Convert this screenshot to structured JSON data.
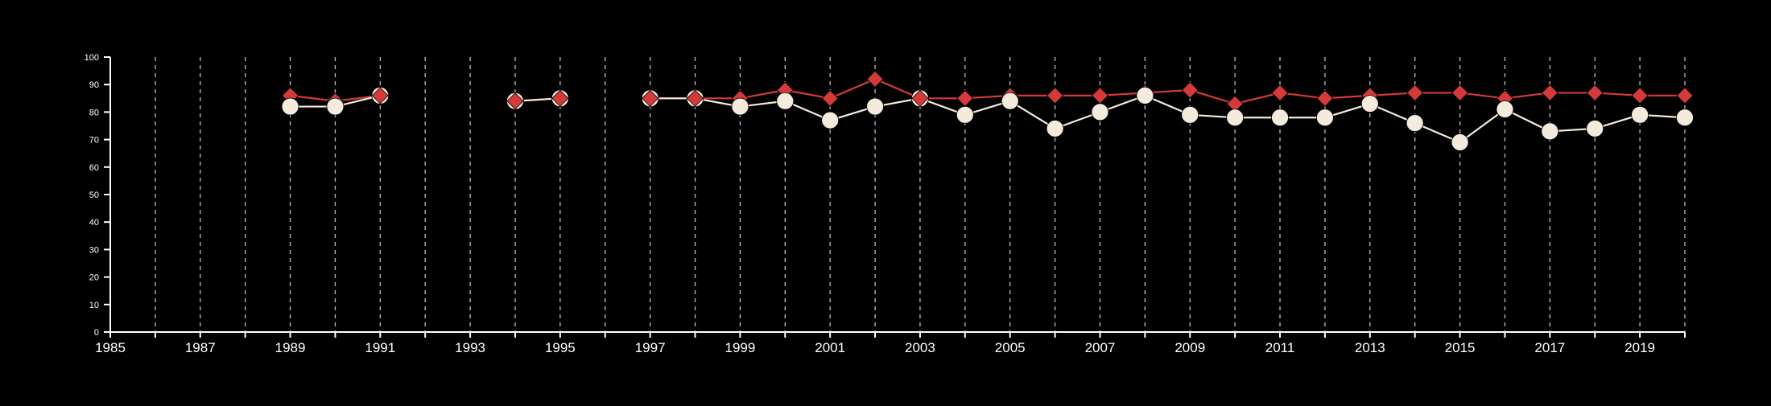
{
  "chart_data": {
    "type": "line",
    "x_range": [
      1985,
      2020
    ],
    "x_tick_labels": [
      "1985",
      "1987",
      "1989",
      "1991",
      "1993",
      "1995",
      "1997",
      "1999",
      "2001",
      "2003",
      "2005",
      "2007",
      "2009",
      "2011",
      "2013",
      "2015",
      "2017",
      "2019"
    ],
    "ylim": [
      0,
      100
    ],
    "y_tick_labels": [
      "0",
      "10",
      "20",
      "30",
      "40",
      "50",
      "60",
      "70",
      "80",
      "90",
      "100"
    ],
    "grid": "dashed vertical lines at every year",
    "series": [
      {
        "color": "#d43a3a",
        "marker": "diamond",
        "points": [
          {
            "x": 1989,
            "y": 86
          },
          {
            "x": 1990,
            "y": 84
          },
          {
            "x": 1991,
            "y": 86
          },
          {
            "x": 1994,
            "y": 84
          },
          {
            "x": 1995,
            "y": 85
          },
          {
            "x": 1997,
            "y": 85
          },
          {
            "x": 1998,
            "y": 85
          },
          {
            "x": 1999,
            "y": 85
          },
          {
            "x": 2000,
            "y": 88
          },
          {
            "x": 2001,
            "y": 85
          },
          {
            "x": 2002,
            "y": 92
          },
          {
            "x": 2003,
            "y": 85
          },
          {
            "x": 2004,
            "y": 85
          },
          {
            "x": 2005,
            "y": 86
          },
          {
            "x": 2006,
            "y": 86
          },
          {
            "x": 2007,
            "y": 86
          },
          {
            "x": 2008,
            "y": 87
          },
          {
            "x": 2009,
            "y": 88
          },
          {
            "x": 2010,
            "y": 83
          },
          {
            "x": 2011,
            "y": 87
          },
          {
            "x": 2012,
            "y": 85
          },
          {
            "x": 2013,
            "y": 86
          },
          {
            "x": 2014,
            "y": 87
          },
          {
            "x": 2015,
            "y": 87
          },
          {
            "x": 2016,
            "y": 85
          },
          {
            "x": 2017,
            "y": 87
          },
          {
            "x": 2018,
            "y": 87
          },
          {
            "x": 2019,
            "y": 86
          },
          {
            "x": 2020,
            "y": 86
          }
        ]
      },
      {
        "color": "#f5ebdc",
        "marker": "circle",
        "points": [
          {
            "x": 1989,
            "y": 82
          },
          {
            "x": 1990,
            "y": 82
          },
          {
            "x": 1991,
            "y": 86
          },
          {
            "x": 1994,
            "y": 84
          },
          {
            "x": 1995,
            "y": 85
          },
          {
            "x": 1997,
            "y": 85
          },
          {
            "x": 1998,
            "y": 85
          },
          {
            "x": 1999,
            "y": 82
          },
          {
            "x": 2000,
            "y": 84
          },
          {
            "x": 2001,
            "y": 77
          },
          {
            "x": 2002,
            "y": 82
          },
          {
            "x": 2003,
            "y": 85
          },
          {
            "x": 2004,
            "y": 79
          },
          {
            "x": 2005,
            "y": 84
          },
          {
            "x": 2006,
            "y": 74
          },
          {
            "x": 2007,
            "y": 80
          },
          {
            "x": 2008,
            "y": 86
          },
          {
            "x": 2009,
            "y": 79
          },
          {
            "x": 2010,
            "y": 78
          },
          {
            "x": 2011,
            "y": 78
          },
          {
            "x": 2012,
            "y": 78
          },
          {
            "x": 2013,
            "y": 83
          },
          {
            "x": 2014,
            "y": 76
          },
          {
            "x": 2015,
            "y": 69
          },
          {
            "x": 2016,
            "y": 81
          },
          {
            "x": 2017,
            "y": 73
          },
          {
            "x": 2018,
            "y": 74
          },
          {
            "x": 2019,
            "y": 79
          },
          {
            "x": 2020,
            "y": 78
          }
        ]
      }
    ]
  }
}
